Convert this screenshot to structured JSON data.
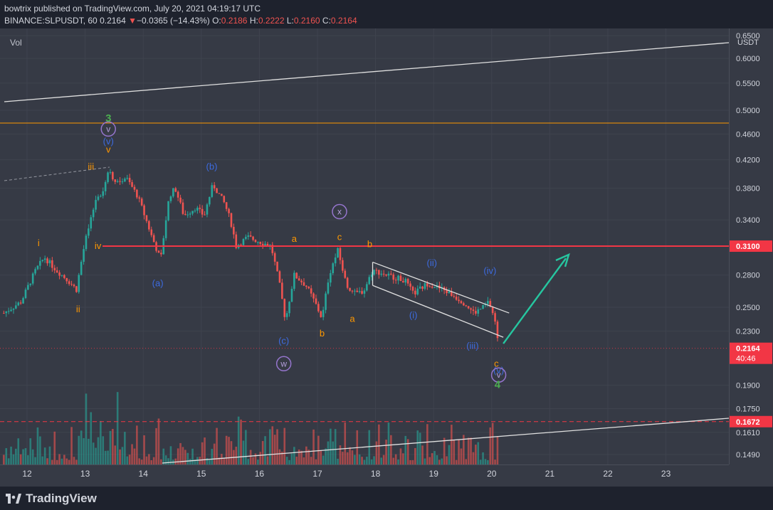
{
  "header": {
    "publisher_line": "bowtrix published on TradingView.com, July 20, 2021 04:19:17 UTC",
    "symbol": "BINANCE:SLPUSDT, 60",
    "last": "0.2164",
    "change_arrow": "▼",
    "change": "−0.0365 (−14.43%)",
    "o_label": "O:",
    "o_value": "0.2186",
    "h_label": "H:",
    "h_value": "0.2222",
    "l_label": "L:",
    "l_value": "0.2160",
    "c_label": "C:",
    "c_value": "0.2164"
  },
  "volume_label": "Vol",
  "footer": {
    "logo_text": "TradingView",
    "logo_icon": "tradingview-logo-icon"
  },
  "colors": {
    "bg": "#363a45",
    "up": "#26a69a",
    "down": "#ef5350",
    "wave_orange": "#ff9800",
    "wave_blue": "#2962ff",
    "wave_green": "#4caf50",
    "wave_purple": "#9575cd",
    "resistance": "#f23645",
    "target_arrow": "#26c6a0"
  },
  "chart_data": {
    "type": "candlestick",
    "symbol": "BINANCE:SLPUSDT",
    "interval": "60",
    "price_axis": {
      "unit": "USDT",
      "ticks": [
        "0.6500",
        "0.6000",
        "0.5500",
        "0.5000",
        "0.4600",
        "0.4200",
        "0.3800",
        "0.3400",
        "0.3100",
        "0.2800",
        "0.2500",
        "0.2300",
        "0.2164",
        "0.1900",
        "0.1750",
        "0.1672",
        "0.1610",
        "0.1490"
      ],
      "scale": "log",
      "range": [
        0.142,
        0.66
      ]
    },
    "time_axis": {
      "ticks": [
        "12",
        "13",
        "14",
        "15",
        "16",
        "17",
        "18",
        "19",
        "20",
        "21",
        "22",
        "23"
      ]
    },
    "price_labels": [
      {
        "value": 0.31,
        "text": "0.3100",
        "color": "#f23645"
      },
      {
        "value": 0.2164,
        "text": "0.2164",
        "sub": "40:46",
        "color": "#f23645"
      },
      {
        "value": 0.1672,
        "text": "0.1672",
        "color": "#f23645"
      }
    ],
    "approx_path": [
      {
        "t": 11.6,
        "p": 0.245
      },
      {
        "t": 11.9,
        "p": 0.255
      },
      {
        "t": 12.15,
        "p": 0.285
      },
      {
        "t": 12.3,
        "p": 0.298
      },
      {
        "t": 12.5,
        "p": 0.285
      },
      {
        "t": 12.7,
        "p": 0.275
      },
      {
        "t": 12.85,
        "p": 0.266
      },
      {
        "t": 13.0,
        "p": 0.315
      },
      {
        "t": 13.1,
        "p": 0.34
      },
      {
        "t": 13.2,
        "p": 0.37
      },
      {
        "t": 13.3,
        "p": 0.375
      },
      {
        "t": 13.42,
        "p": 0.41
      },
      {
        "t": 13.5,
        "p": 0.385
      },
      {
        "t": 13.7,
        "p": 0.395
      },
      {
        "t": 13.9,
        "p": 0.37
      },
      {
        "t": 14.0,
        "p": 0.35
      },
      {
        "t": 14.15,
        "p": 0.32
      },
      {
        "t": 14.3,
        "p": 0.295
      },
      {
        "t": 14.45,
        "p": 0.37
      },
      {
        "t": 14.55,
        "p": 0.38
      },
      {
        "t": 14.7,
        "p": 0.345
      },
      {
        "t": 14.9,
        "p": 0.355
      },
      {
        "t": 15.05,
        "p": 0.345
      },
      {
        "t": 15.2,
        "p": 0.385
      },
      {
        "t": 15.4,
        "p": 0.36
      },
      {
        "t": 15.5,
        "p": 0.34
      },
      {
        "t": 15.6,
        "p": 0.31
      },
      {
        "t": 15.8,
        "p": 0.32
      },
      {
        "t": 16.0,
        "p": 0.315
      },
      {
        "t": 16.2,
        "p": 0.31
      },
      {
        "t": 16.35,
        "p": 0.27
      },
      {
        "t": 16.45,
        "p": 0.238
      },
      {
        "t": 16.6,
        "p": 0.28
      },
      {
        "t": 16.8,
        "p": 0.27
      },
      {
        "t": 16.95,
        "p": 0.255
      },
      {
        "t": 17.08,
        "p": 0.24
      },
      {
        "t": 17.2,
        "p": 0.28
      },
      {
        "t": 17.35,
        "p": 0.305
      },
      {
        "t": 17.5,
        "p": 0.27
      },
      {
        "t": 17.65,
        "p": 0.262
      },
      {
        "t": 17.8,
        "p": 0.265
      },
      {
        "t": 17.95,
        "p": 0.285
      },
      {
        "t": 18.2,
        "p": 0.28
      },
      {
        "t": 18.5,
        "p": 0.275
      },
      {
        "t": 18.65,
        "p": 0.262
      },
      {
        "t": 18.9,
        "p": 0.272
      },
      {
        "t": 19.2,
        "p": 0.265
      },
      {
        "t": 19.5,
        "p": 0.255
      },
      {
        "t": 19.7,
        "p": 0.245
      },
      {
        "t": 19.85,
        "p": 0.25
      },
      {
        "t": 19.95,
        "p": 0.255
      },
      {
        "t": 20.05,
        "p": 0.24
      },
      {
        "t": 20.12,
        "p": 0.2164
      }
    ],
    "drawings": {
      "resistance": {
        "value": 0.31,
        "label": "0.3100"
      },
      "dashed_support": {
        "value": 0.1672,
        "label": "0.1672"
      },
      "horizontal_orange": {
        "value": 0.478
      }
    },
    "wave_labels": [
      {
        "text": "i",
        "t": 12.2,
        "p": 0.313,
        "color": "orange"
      },
      {
        "text": "ii",
        "t": 12.88,
        "p": 0.248,
        "color": "orange"
      },
      {
        "text": "iii",
        "t": 13.1,
        "p": 0.41,
        "color": "orange"
      },
      {
        "text": "iv",
        "t": 13.22,
        "p": 0.31,
        "color": "orange"
      },
      {
        "text": "v",
        "t": 13.4,
        "p": 0.435,
        "color": "orange"
      },
      {
        "text": "(v)",
        "t": 13.4,
        "p": 0.448,
        "color": "blue"
      },
      {
        "text": "v",
        "t": 13.4,
        "p": 0.468,
        "color": "purple-circle"
      },
      {
        "text": "3",
        "t": 13.4,
        "p": 0.485,
        "color": "green"
      },
      {
        "text": "(a)",
        "t": 14.25,
        "p": 0.272,
        "color": "blue"
      },
      {
        "text": "(b)",
        "t": 15.18,
        "p": 0.41,
        "color": "blue"
      },
      {
        "text": "(c)",
        "t": 16.42,
        "p": 0.222,
        "color": "blue"
      },
      {
        "text": "w",
        "t": 16.42,
        "p": 0.205,
        "color": "purple-circle"
      },
      {
        "text": "a",
        "t": 16.6,
        "p": 0.318,
        "color": "orange"
      },
      {
        "text": "b",
        "t": 17.08,
        "p": 0.228,
        "color": "orange"
      },
      {
        "text": "x",
        "t": 17.38,
        "p": 0.35,
        "color": "purple-circle"
      },
      {
        "text": "c",
        "t": 17.38,
        "p": 0.32,
        "color": "orange"
      },
      {
        "text": "a",
        "t": 17.6,
        "p": 0.24,
        "color": "orange"
      },
      {
        "text": "b",
        "t": 17.9,
        "p": 0.312,
        "color": "orange"
      },
      {
        "text": "(i)",
        "t": 18.65,
        "p": 0.243,
        "color": "blue"
      },
      {
        "text": "(ii)",
        "t": 18.97,
        "p": 0.292,
        "color": "blue"
      },
      {
        "text": "(iii)",
        "t": 19.67,
        "p": 0.218,
        "color": "blue"
      },
      {
        "text": "(iv)",
        "t": 19.97,
        "p": 0.284,
        "color": "blue"
      },
      {
        "text": "c",
        "t": 20.08,
        "p": 0.205,
        "color": "orange"
      },
      {
        "text": "(v)",
        "t": 20.12,
        "p": 0.2,
        "color": "blue"
      },
      {
        "text": "v",
        "t": 20.12,
        "p": 0.197,
        "color": "purple-circle"
      },
      {
        "text": "4",
        "t": 20.1,
        "p": 0.19,
        "color": "green"
      }
    ]
  }
}
